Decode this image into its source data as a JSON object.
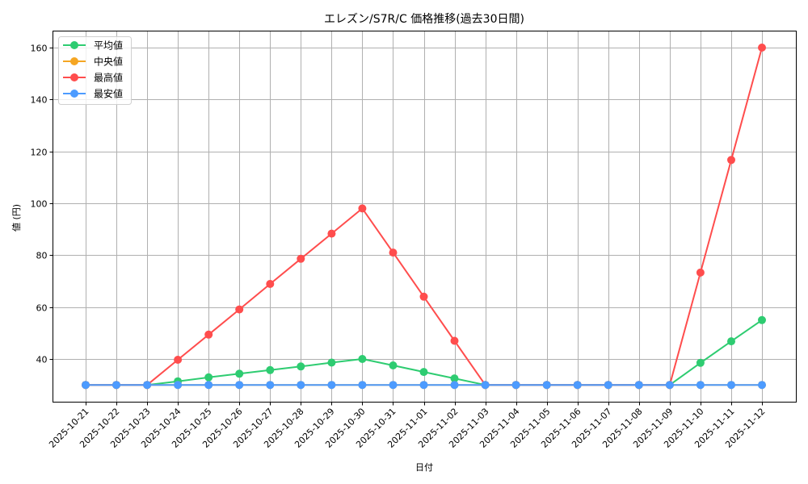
{
  "chart_data": {
    "type": "line",
    "title": "エレズン/S7R/C 価格推移(過去30日間)",
    "xlabel": "日付",
    "ylabel": "値 (円)",
    "ylim": [
      23.5,
      166.5
    ],
    "yticks": [
      40,
      60,
      80,
      100,
      120,
      140,
      160
    ],
    "grid": true,
    "legend_position": "upper left",
    "x": [
      "2025-10-21",
      "2025-10-22",
      "2025-10-23",
      "2025-10-24",
      "2025-10-25",
      "2025-10-26",
      "2025-10-27",
      "2025-10-28",
      "2025-10-29",
      "2025-10-30",
      "2025-10-31",
      "2025-11-01",
      "2025-11-02",
      "2025-11-03",
      "2025-11-04",
      "2025-11-05",
      "2025-11-06",
      "2025-11-07",
      "2025-11-08",
      "2025-11-09",
      "2025-11-10",
      "2025-11-11",
      "2025-11-12"
    ],
    "series": [
      {
        "name": "平均値",
        "color": "#2ecc71",
        "values": [
          30,
          30,
          30,
          31.4,
          32.9,
          34.3,
          35.7,
          37.1,
          38.6,
          40.0,
          37.5,
          35.0,
          32.5,
          30,
          30,
          30,
          30,
          30,
          30,
          30,
          38.5,
          46.8,
          55.0
        ]
      },
      {
        "name": "中央値",
        "color": "#f5a623",
        "values": [
          30,
          30,
          30,
          30,
          30,
          30,
          30,
          30,
          30,
          30,
          30,
          30,
          30,
          30,
          30,
          30,
          30,
          30,
          30,
          30,
          30,
          30,
          30
        ]
      },
      {
        "name": "最高値",
        "color": "#ff4d4d",
        "values": [
          30,
          30,
          30,
          39.7,
          49.4,
          59.1,
          68.9,
          78.6,
          88.3,
          98.0,
          81.0,
          64.0,
          47.0,
          30,
          30,
          30,
          30,
          30,
          30,
          30,
          73.3,
          116.7,
          160.0
        ]
      },
      {
        "name": "最安値",
        "color": "#4c9bff",
        "values": [
          30,
          30,
          30,
          30,
          30,
          30,
          30,
          30,
          30,
          30,
          30,
          30,
          30,
          30,
          30,
          30,
          30,
          30,
          30,
          30,
          30,
          30,
          30
        ]
      }
    ]
  }
}
